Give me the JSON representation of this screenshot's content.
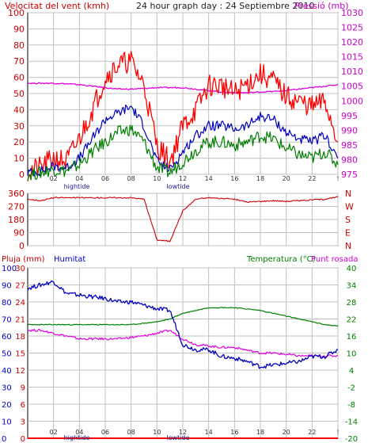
{
  "header": {
    "left_title": "Velocitat del vent (kmh)",
    "center_title": "24 hour graph day : 24 Septiembre 2010",
    "right_title": "Pressió (mb)"
  },
  "bottom_header": {
    "pluja": "Pluja (mm)",
    "humitat": "Humitat",
    "temperatura": "Temperatura (°C)",
    "punt_rosada": "Punt rosada"
  },
  "tide_labels": {
    "high": "hightide",
    "low": "lowtide"
  },
  "colors": {
    "wind": "#ff0000",
    "gust": "#ff0000",
    "wind_avg": "#0000c0",
    "wind_low": "#007f00",
    "pressure": "#e000e0",
    "direction": "#cc0000",
    "humidity": "#0000c0",
    "temperature": "#007f00",
    "dewpoint": "#e000e0",
    "rain": "#ff0000",
    "grid": "#c0c0c0",
    "left_axis": "#cc0000",
    "right_axis": "#cc00cc"
  },
  "chart_data": [
    {
      "type": "line",
      "x_ticks": [
        "02",
        "04",
        "06",
        "08",
        "10",
        "12",
        "14",
        "16",
        "18",
        "20",
        "22",
        "!"
      ],
      "ylim": [
        0,
        100
      ],
      "y_ticks": [
        "0",
        "10",
        "20",
        "30",
        "40",
        "50",
        "60",
        "70",
        "80",
        "90",
        "100"
      ],
      "y2lim": [
        975,
        1030
      ],
      "y2_ticks": [
        "975",
        "980",
        "985",
        "990",
        "995",
        "1000",
        "1005",
        "1010",
        "1015",
        "1020",
        "1025",
        "1030"
      ],
      "series": [
        {
          "x": [
            0,
            1,
            2,
            3,
            4,
            5,
            6,
            7,
            8,
            9,
            10,
            11,
            12,
            13,
            14,
            15,
            16,
            17,
            18,
            19,
            20,
            21,
            22,
            23,
            24
          ],
          "values": [
            2,
            4,
            10,
            8,
            22,
            40,
            60,
            68,
            70,
            55,
            18,
            8,
            30,
            40,
            55,
            55,
            50,
            56,
            62,
            58,
            48,
            45,
            42,
            45,
            20
          ]
        },
        {
          "x": [
            0,
            1,
            2,
            3,
            4,
            5,
            6,
            7,
            8,
            9,
            10,
            11,
            12,
            13,
            14,
            15,
            16,
            17,
            18,
            19,
            20,
            21,
            22,
            23,
            24
          ],
          "values": [
            1,
            2,
            5,
            4,
            10,
            22,
            34,
            38,
            42,
            30,
            8,
            3,
            14,
            24,
            30,
            30,
            28,
            30,
            36,
            34,
            26,
            22,
            20,
            24,
            10
          ]
        },
        {
          "x": [
            0,
            1,
            2,
            3,
            4,
            5,
            6,
            7,
            8,
            9,
            10,
            11,
            12,
            13,
            14,
            15,
            16,
            17,
            18,
            19,
            20,
            21,
            22,
            23,
            24
          ],
          "values": [
            0,
            1,
            3,
            2,
            6,
            14,
            20,
            26,
            28,
            20,
            4,
            1,
            8,
            15,
            20,
            20,
            18,
            20,
            24,
            22,
            16,
            12,
            10,
            14,
            6
          ]
        },
        {
          "name": "Pressió (mb)",
          "axis": "right",
          "x": [
            0,
            1,
            2,
            3,
            4,
            5,
            6,
            7,
            8,
            9,
            10,
            11,
            12,
            13,
            14,
            15,
            16,
            17,
            18,
            19,
            20,
            21,
            22,
            23,
            24
          ],
          "values": [
            1006,
            1006,
            1006,
            1005.8,
            1005.5,
            1005,
            1004.5,
            1004,
            1004,
            1004.2,
            1004.5,
            1004.5,
            1004.5,
            1004,
            1003.5,
            1003,
            1002.8,
            1002.8,
            1003,
            1003.2,
            1003.5,
            1004,
            1004.5,
            1005,
            1005.5
          ]
        }
      ]
    },
    {
      "type": "line",
      "x_ticks": [
        "02",
        "04",
        "06",
        "08",
        "10",
        "12",
        "14",
        "16",
        "18",
        "20",
        "22",
        "!"
      ],
      "ylim": [
        0,
        360
      ],
      "y_ticks": [
        "0",
        "90",
        "180",
        "270",
        "360"
      ],
      "y2_ticks": [
        "N",
        "W",
        "S",
        "E",
        "N"
      ],
      "series": [
        {
          "x": [
            0,
            1,
            2,
            3,
            4,
            5,
            6,
            7,
            8,
            9,
            10,
            11,
            12,
            13,
            14,
            15,
            16,
            17,
            18,
            19,
            20,
            21,
            22,
            23,
            24
          ],
          "values": [
            320,
            310,
            330,
            330,
            330,
            330,
            330,
            330,
            330,
            320,
            40,
            30,
            240,
            320,
            330,
            325,
            320,
            300,
            305,
            310,
            305,
            310,
            315,
            320,
            335
          ]
        }
      ]
    },
    {
      "type": "line",
      "x_ticks": [
        "02",
        "04",
        "06",
        "08",
        "10",
        "12",
        "14",
        "16",
        "18",
        "20",
        "22",
        "!"
      ],
      "ylim": [
        0,
        30
      ],
      "y_ticks": [
        "0",
        "3",
        "6",
        "9",
        "12",
        "15",
        "18",
        "21",
        "24",
        "27",
        "30"
      ],
      "y_ticks_outer": [
        "0",
        "10",
        "20",
        "30",
        "40",
        "50",
        "60",
        "70",
        "80",
        "90",
        "100"
      ],
      "y2lim": [
        -20,
        40
      ],
      "y2_ticks": [
        "-20",
        "-14",
        "-8",
        "-2",
        "4",
        "10",
        "16",
        "22",
        "28",
        "34",
        "40"
      ],
      "series": [
        {
          "name": "Humitat",
          "x": [
            0,
            1,
            2,
            3,
            4,
            5,
            6,
            7,
            8,
            9,
            10,
            11,
            12,
            13,
            14,
            15,
            16,
            17,
            18,
            19,
            20,
            21,
            22,
            23,
            24
          ],
          "values": [
            88,
            90,
            92,
            85,
            84,
            83,
            82,
            80,
            80,
            78,
            76,
            75,
            55,
            52,
            52,
            48,
            47,
            45,
            42,
            43,
            44,
            45,
            48,
            48,
            52
          ]
        },
        {
          "name": "Temperatura (°C)",
          "x": [
            0,
            1,
            2,
            3,
            4,
            5,
            6,
            7,
            8,
            9,
            10,
            11,
            12,
            13,
            14,
            15,
            16,
            17,
            18,
            19,
            20,
            21,
            22,
            23,
            24
          ],
          "values": [
            20,
            20,
            20,
            20,
            20,
            20,
            20,
            20,
            20,
            20.5,
            21,
            22,
            24,
            25,
            26,
            26,
            26,
            25.5,
            25,
            24,
            23,
            22,
            21,
            20,
            19.5
          ]
        },
        {
          "name": "Punt rosada",
          "x": [
            0,
            1,
            2,
            3,
            4,
            5,
            6,
            7,
            8,
            9,
            10,
            11,
            12,
            13,
            14,
            15,
            16,
            17,
            18,
            19,
            20,
            21,
            22,
            23,
            24
          ],
          "values": [
            18,
            18,
            17,
            16,
            15,
            15,
            15,
            15,
            15.5,
            16,
            17,
            18,
            15,
            13,
            12.5,
            12,
            12,
            11,
            10,
            10,
            9.5,
            9,
            9,
            9,
            9
          ]
        },
        {
          "name": "Pluja (mm)",
          "x": [
            0,
            24
          ],
          "values": [
            0,
            0
          ]
        }
      ]
    }
  ]
}
